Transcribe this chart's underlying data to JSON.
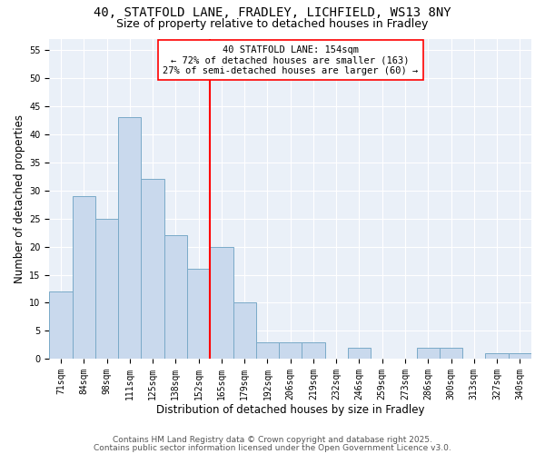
{
  "title1": "40, STATFOLD LANE, FRADLEY, LICHFIELD, WS13 8NY",
  "title2": "Size of property relative to detached houses in Fradley",
  "xlabel": "Distribution of detached houses by size in Fradley",
  "ylabel": "Number of detached properties",
  "categories": [
    "71sqm",
    "84sqm",
    "98sqm",
    "111sqm",
    "125sqm",
    "138sqm",
    "152sqm",
    "165sqm",
    "179sqm",
    "192sqm",
    "206sqm",
    "219sqm",
    "232sqm",
    "246sqm",
    "259sqm",
    "273sqm",
    "286sqm",
    "300sqm",
    "313sqm",
    "327sqm",
    "340sqm"
  ],
  "values": [
    12,
    29,
    25,
    43,
    32,
    22,
    16,
    20,
    10,
    3,
    3,
    3,
    0,
    2,
    0,
    0,
    2,
    2,
    0,
    1,
    1
  ],
  "bar_color": "#c9d9ed",
  "bar_edge_color": "#7aaac8",
  "ref_line_color": "red",
  "ylim": [
    0,
    57
  ],
  "yticks": [
    0,
    5,
    10,
    15,
    20,
    25,
    30,
    35,
    40,
    45,
    50,
    55
  ],
  "background_color": "#eaf0f8",
  "grid_color": "white",
  "annotation_line1": "40 STATFOLD LANE: 154sqm",
  "annotation_line2": "← 72% of detached houses are smaller (163)",
  "annotation_line3": "27% of semi-detached houses are larger (60) →",
  "footer1": "Contains HM Land Registry data © Crown copyright and database right 2025.",
  "footer2": "Contains public sector information licensed under the Open Government Licence v3.0.",
  "title_fontsize": 10,
  "subtitle_fontsize": 9,
  "axis_label_fontsize": 8.5,
  "tick_fontsize": 7,
  "annotation_fontsize": 7.5,
  "footer_fontsize": 6.5
}
